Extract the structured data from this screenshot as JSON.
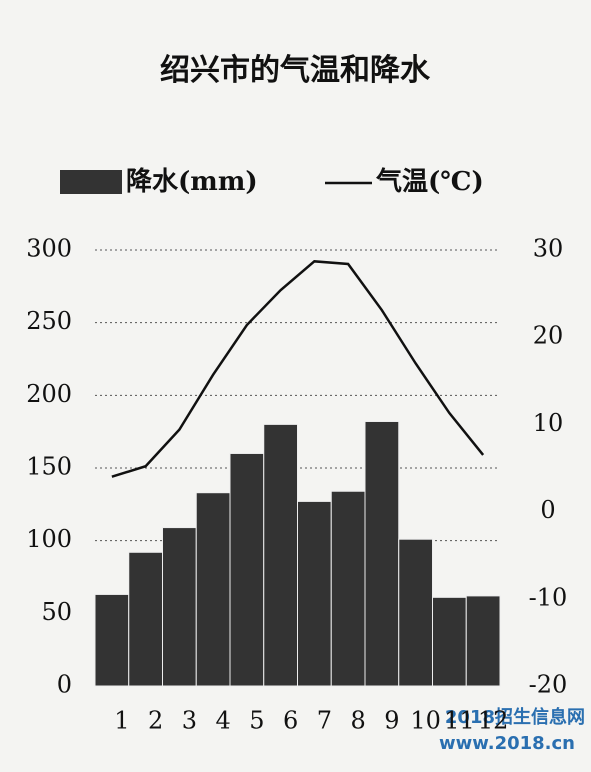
{
  "chart_data": {
    "type": "combo",
    "title": "绍兴市的气温和降水",
    "categories": [
      "1",
      "2",
      "3",
      "4",
      "5",
      "6",
      "7",
      "8",
      "9",
      "10",
      "11",
      "12"
    ],
    "series": [
      {
        "name": "降水(mm)",
        "type": "bar",
        "color": "#333333",
        "axis": "y",
        "values": [
          63,
          92,
          109,
          133,
          160,
          180,
          127,
          134,
          182,
          101,
          61,
          62
        ]
      },
      {
        "name": "气温(℃)",
        "type": "line",
        "color": "#111111",
        "axis": "y2",
        "values": [
          4.0,
          5.2,
          9.4,
          15.7,
          21.4,
          25.4,
          28.7,
          28.4,
          23.1,
          17.0,
          11.3,
          6.5
        ]
      }
    ],
    "ylim": [
      0,
      300
    ],
    "yticks": [
      0,
      50,
      100,
      150,
      200,
      250,
      300
    ],
    "y2lim": [
      -20,
      30
    ],
    "y2ticks": [
      -20,
      -10,
      0,
      10,
      20,
      30
    ],
    "grid": true,
    "watermark": [
      "2018招生信息网",
      "www.2018.cn"
    ]
  }
}
